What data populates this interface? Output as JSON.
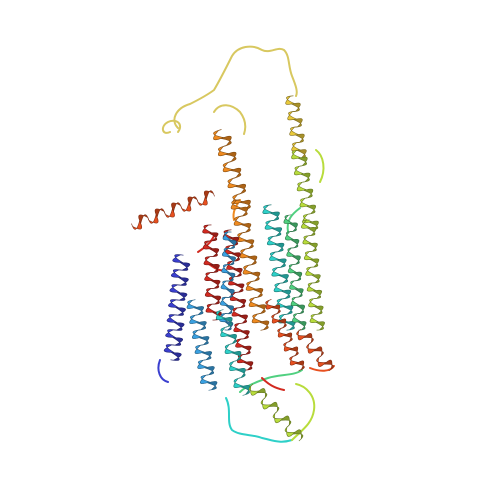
{
  "image": {
    "subject": "protein-cartoon",
    "color_scheme": "rainbow-n-to-c",
    "background": "#ffffff"
  },
  "colors": {
    "blue": "#3a3fcf",
    "light_blue": "#3aa0e0",
    "cyan": "#2ed0c8",
    "green": "#50d080",
    "yellow_green": "#b8dc3c",
    "yellow": "#e8c83a",
    "orange": "#ef8a1f",
    "red_orange": "#e8501f",
    "red": "#d22a20",
    "loop": "#d8c860"
  }
}
